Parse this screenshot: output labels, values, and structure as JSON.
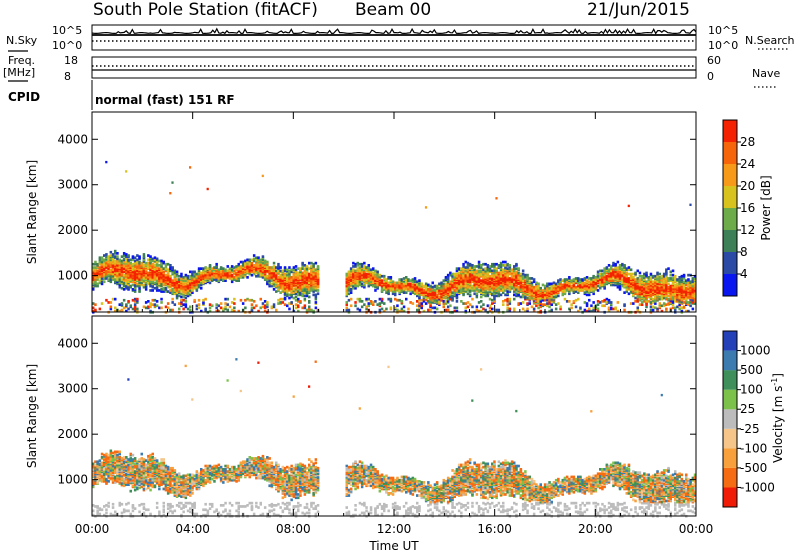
{
  "header": {
    "station": "South Pole Station (fitACF)",
    "beam": "Beam 00",
    "date": "21/Jun/2015"
  },
  "top_panel": {
    "left_label": "N.Sky",
    "left_ticks": [
      "10^5",
      "10^0"
    ],
    "right_label": "N.Search",
    "right_ticks": [
      "10^5",
      "10^0"
    ]
  },
  "freq_panel": {
    "left_label_1": "Freq.",
    "left_label_2": "[MHz]",
    "left_ticks": [
      "18",
      "8"
    ],
    "right_label": "Nave",
    "right_ticks": [
      "60",
      "0"
    ]
  },
  "cpid": {
    "label": "CPID",
    "text": "normal (fast) 151 RF"
  },
  "colors": {
    "power_scale": [
      "#0a16f0",
      "#2a4aa6",
      "#3d7f57",
      "#6caa4a",
      "#d8c21e",
      "#f79a1a",
      "#f7650a",
      "#f42200"
    ],
    "velocity_scale": [
      "#2340b8",
      "#3b7bb0",
      "#3f8f5a",
      "#7cc24a",
      "#bcbcbc",
      "#f5c58a",
      "#f7a03c",
      "#f56c12",
      "#f01c08"
    ]
  },
  "chart_data": [
    {
      "type": "heatmap",
      "title": "",
      "xlabel": "",
      "ylabel": "Slant Range [km]",
      "x_tick_labels": [
        "00:00",
        "04:00",
        "08:00",
        "12:00",
        "16:00",
        "20:00",
        "00:00"
      ],
      "y_tick_labels": [
        "1000",
        "2000",
        "3000",
        "4000"
      ],
      "xlim_hours": [
        0,
        24
      ],
      "ylim": [
        200,
        4600
      ],
      "colorbar": {
        "label": "Power [dB]",
        "ticks": [
          "4",
          "8",
          "12",
          "16",
          "20",
          "24",
          "28"
        ],
        "range": [
          0,
          32
        ]
      },
      "echo_bands": [
        {
          "start": "00:00",
          "end": "09:00",
          "center_range": 1000,
          "peak_power": 28
        },
        {
          "start": "10:00",
          "end": "24:00",
          "center_range": 800,
          "peak_power": 28
        }
      ],
      "data_gap": [
        "09:00",
        "10:00"
      ]
    },
    {
      "type": "heatmap",
      "title": "",
      "xlabel": "Time UT",
      "ylabel": "Slant Range [km]",
      "x_tick_labels": [
        "00:00",
        "04:00",
        "08:00",
        "12:00",
        "16:00",
        "20:00",
        "00:00"
      ],
      "y_tick_labels": [
        "1000",
        "2000",
        "3000",
        "4000"
      ],
      "xlim_hours": [
        0,
        24
      ],
      "ylim": [
        200,
        4600
      ],
      "colorbar": {
        "label": "Velocity [m s^-1]",
        "ticks": [
          "1000",
          "500",
          "100",
          "25",
          "-25",
          "-100",
          "-500",
          "-1000"
        ]
      },
      "echo_bands": [
        {
          "start": "00:00",
          "end": "09:00",
          "center_range": 1100
        },
        {
          "start": "10:00",
          "end": "24:00",
          "center_range": 900
        }
      ],
      "data_gap": [
        "09:00",
        "10:00"
      ]
    }
  ]
}
